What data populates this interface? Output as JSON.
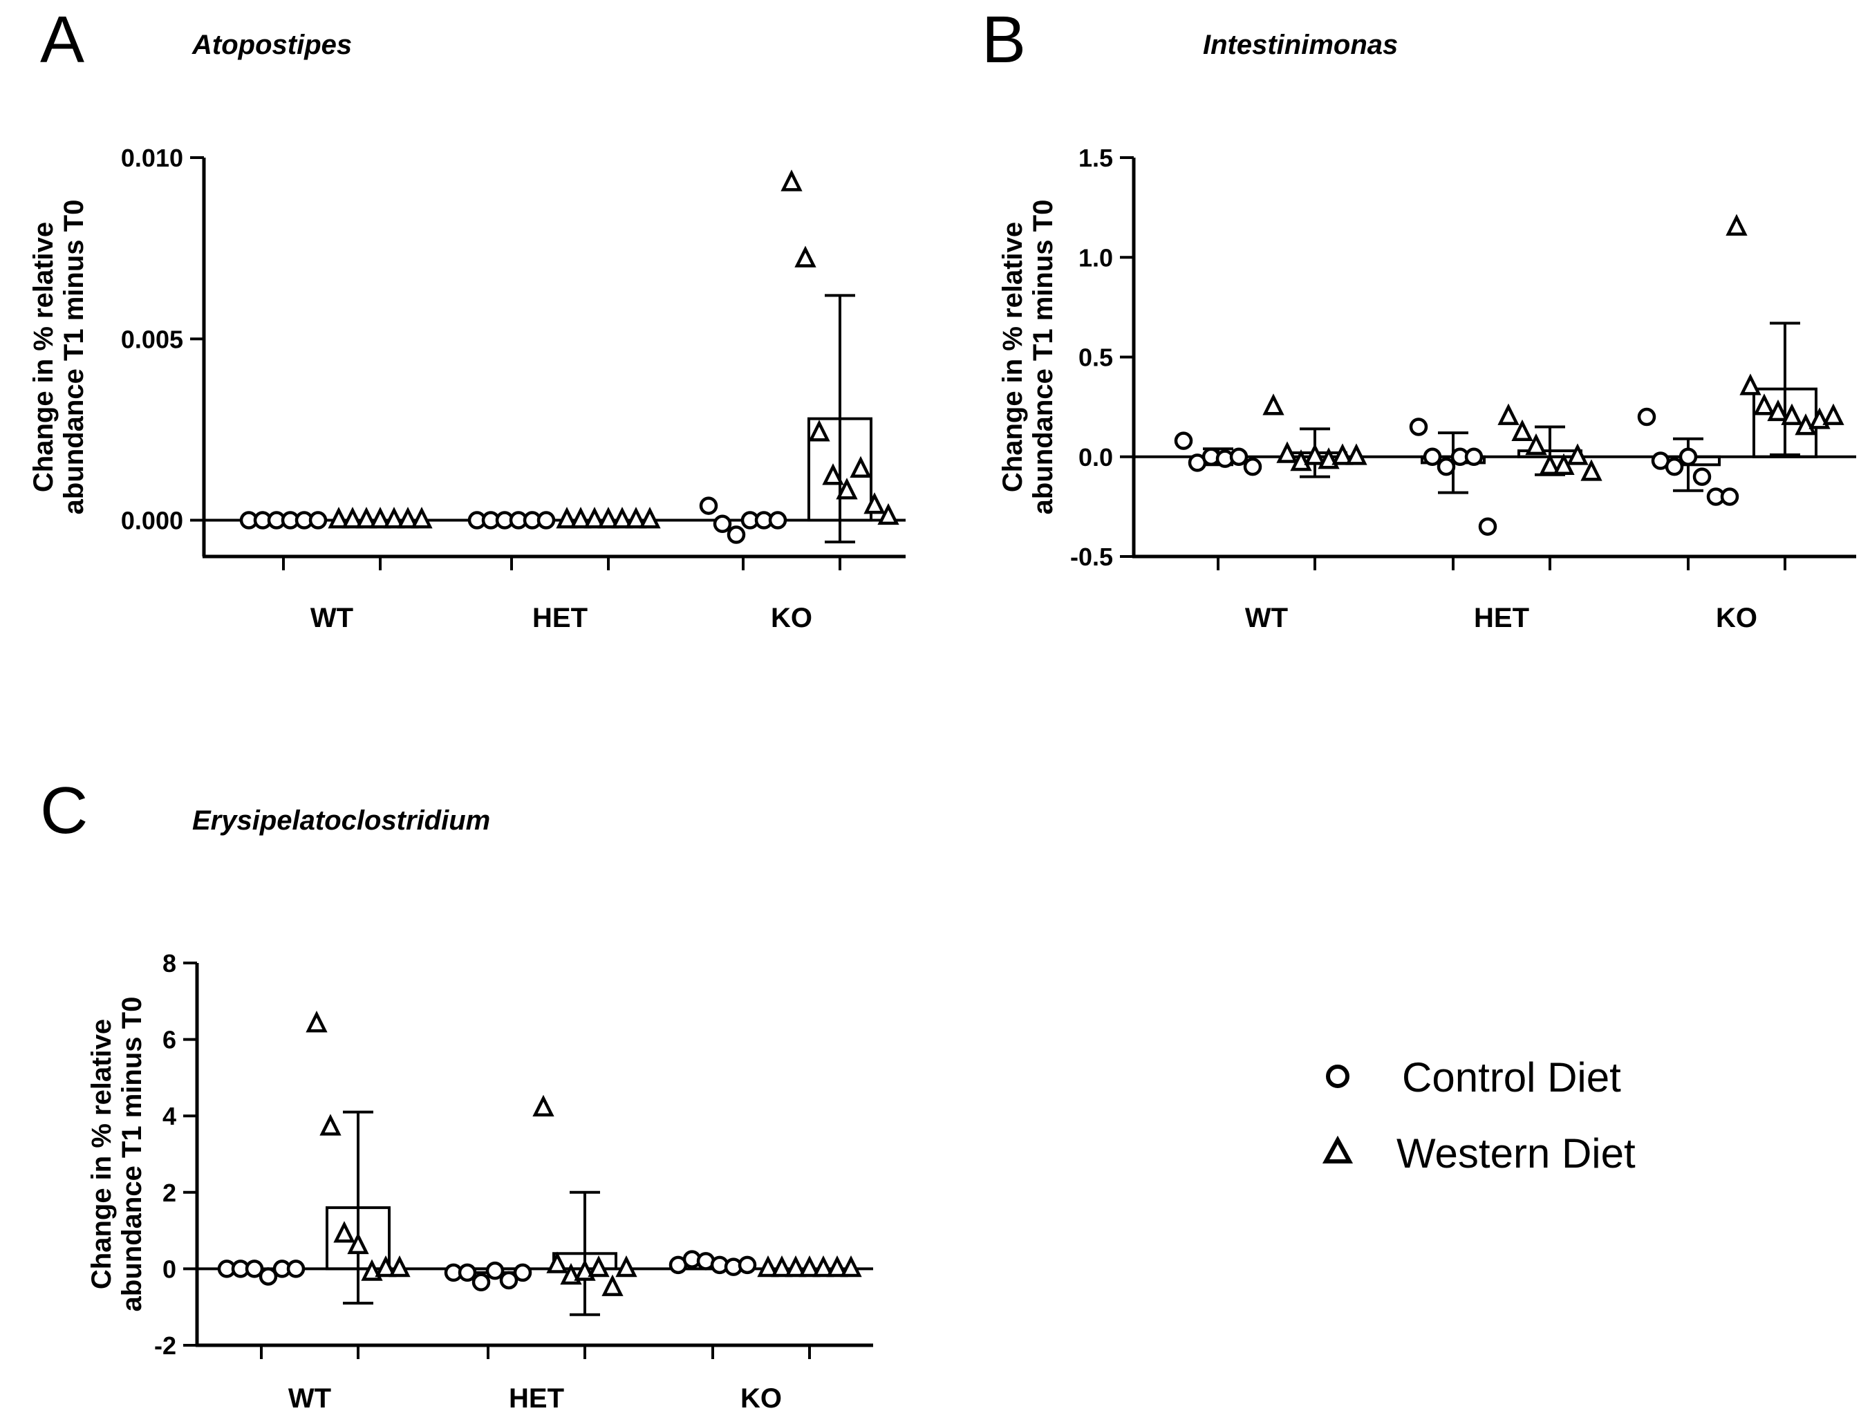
{
  "chart_data": [
    {
      "panel": "A",
      "type": "scatter",
      "title": "Atopostipes",
      "ylabel": [
        "Change in % relative",
        "abundance T1 minus T0"
      ],
      "xlabel": "",
      "ylim": [
        -0.001,
        0.01
      ],
      "yticks": [
        {
          "value": 0.0,
          "label": "0.000"
        },
        {
          "value": 0.005,
          "label": "0.005"
        },
        {
          "value": 0.01,
          "label": "0.010"
        }
      ],
      "categories": [
        "WT",
        "HET",
        "KO"
      ],
      "series": [
        {
          "name": "Control Diet",
          "marker": "circle",
          "bars": [
            {
              "mean": 0.0,
              "sd": 0.0,
              "points": [
                0,
                0,
                0,
                0,
                0,
                0
              ]
            },
            {
              "mean": 0.0,
              "sd": 0.0,
              "points": [
                0,
                0,
                0,
                0,
                0,
                0
              ]
            },
            {
              "mean": 0.0,
              "sd": 0.0,
              "points": [
                0.0004,
                -0.0001,
                -0.0004,
                0,
                0,
                0
              ]
            }
          ]
        },
        {
          "name": "Western Diet",
          "marker": "triangle",
          "bars": [
            {
              "mean": 0.0,
              "sd": 0.0,
              "points": [
                0,
                0,
                0,
                0,
                0,
                0,
                0
              ]
            },
            {
              "mean": 0.0,
              "sd": 0.0,
              "points": [
                0,
                0,
                0,
                0,
                0,
                0,
                0
              ]
            },
            {
              "mean": 0.0028,
              "sd": 0.0034,
              "points": [
                0.0093,
                0.0072,
                0.0024,
                0.0012,
                0.0008,
                0.0014,
                0.0004,
                0.0001
              ]
            }
          ]
        }
      ]
    },
    {
      "panel": "B",
      "type": "scatter",
      "title": "Intestinimonas",
      "ylabel": [
        "Change in % relative",
        "abundance T1 minus T0"
      ],
      "xlabel": "",
      "ylim": [
        -0.5,
        1.5
      ],
      "yticks": [
        {
          "value": -0.5,
          "label": "-0.5"
        },
        {
          "value": 0.0,
          "label": "0.0"
        },
        {
          "value": 0.5,
          "label": "0.5"
        },
        {
          "value": 1.0,
          "label": "1.0"
        },
        {
          "value": 1.5,
          "label": "1.5"
        }
      ],
      "categories": [
        "WT",
        "HET",
        "KO"
      ],
      "series": [
        {
          "name": "Control Diet",
          "marker": "circle",
          "bars": [
            {
              "mean": 0.0,
              "sd": 0.04,
              "points": [
                0.08,
                -0.03,
                0.0,
                -0.01,
                0.0,
                -0.05
              ]
            },
            {
              "mean": -0.03,
              "sd": 0.15,
              "points": [
                0.15,
                0.0,
                -0.05,
                0.0,
                0.0,
                -0.35
              ]
            },
            {
              "mean": -0.04,
              "sd": 0.13,
              "points": [
                0.2,
                -0.02,
                -0.05,
                0.0,
                -0.1,
                -0.2,
                -0.2
              ]
            }
          ]
        },
        {
          "name": "Western Diet",
          "marker": "triangle",
          "bars": [
            {
              "mean": 0.02,
              "sd": 0.12,
              "points": [
                0.25,
                0.01,
                -0.03,
                0.0,
                -0.02,
                0.0,
                0.0
              ]
            },
            {
              "mean": 0.03,
              "sd": 0.12,
              "points": [
                0.2,
                0.12,
                0.05,
                -0.05,
                -0.05,
                0.0,
                -0.08
              ]
            },
            {
              "mean": 0.34,
              "sd": 0.33,
              "points": [
                1.15,
                0.35,
                0.25,
                0.22,
                0.2,
                0.15,
                0.18,
                0.2
              ]
            }
          ]
        }
      ]
    },
    {
      "panel": "C",
      "type": "scatter",
      "title": "Erysipelatoclostridium",
      "ylabel": [
        "Change in % relative",
        "abundance T1 minus T0"
      ],
      "xlabel": "",
      "ylim": [
        -2,
        8
      ],
      "yticks": [
        {
          "value": -2,
          "label": "-2"
        },
        {
          "value": 0,
          "label": "0"
        },
        {
          "value": 2,
          "label": "2"
        },
        {
          "value": 4,
          "label": "4"
        },
        {
          "value": 6,
          "label": "6"
        },
        {
          "value": 8,
          "label": "8"
        }
      ],
      "categories": [
        "WT",
        "HET",
        "KO"
      ],
      "series": [
        {
          "name": "Control Diet",
          "marker": "circle",
          "bars": [
            {
              "mean": 0.0,
              "sd": 0.0,
              "points": [
                0.0,
                0.0,
                0.0,
                -0.2,
                0.0,
                0.0
              ]
            },
            {
              "mean": -0.1,
              "sd": 0.0,
              "points": [
                -0.1,
                -0.1,
                -0.35,
                -0.05,
                -0.3,
                -0.1
              ]
            },
            {
              "mean": 0.1,
              "sd": 0.0,
              "points": [
                0.1,
                0.25,
                0.2,
                0.1,
                0.05,
                0.1
              ]
            }
          ]
        },
        {
          "name": "Western Diet",
          "marker": "triangle",
          "bars": [
            {
              "mean": 1.6,
              "sd": 2.5,
              "points": [
                6.4,
                3.7,
                0.9,
                0.6,
                -0.1,
                0.0,
                0.0
              ]
            },
            {
              "mean": 0.4,
              "sd": 1.6,
              "points": [
                4.2,
                0.1,
                -0.2,
                -0.1,
                0.0,
                -0.5,
                0.0
              ]
            },
            {
              "mean": 0.0,
              "sd": 0.0,
              "points": [
                0,
                0,
                0,
                0,
                0,
                0,
                0
              ]
            }
          ]
        }
      ]
    }
  ],
  "legend": {
    "items": [
      {
        "label": "Control Diet",
        "marker": "circle"
      },
      {
        "label": "Western Diet",
        "marker": "triangle"
      }
    ]
  }
}
